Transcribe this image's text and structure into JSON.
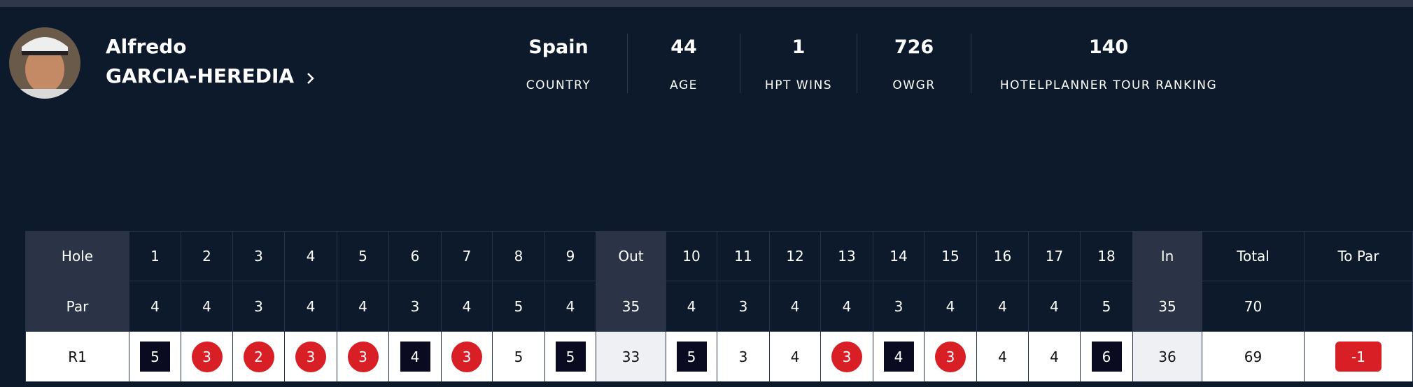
{
  "player": {
    "first_name": "Alfredo",
    "last_name": "GARCIA-HEREDIA"
  },
  "stats": [
    {
      "value": "Spain",
      "label": "COUNTRY"
    },
    {
      "value": 44,
      "label": "AGE"
    },
    {
      "value": 1,
      "label": "HPT WINS"
    },
    {
      "value": 726,
      "label": "OWGR"
    },
    {
      "value": 140,
      "label": "HOTELPLANNER TOUR RANKING"
    }
  ],
  "scorecard": {
    "header": [
      "Hole",
      1,
      2,
      3,
      4,
      5,
      6,
      7,
      8,
      9,
      "Out",
      10,
      11,
      12,
      13,
      14,
      15,
      16,
      17,
      18,
      "In",
      "Total",
      "To Par"
    ],
    "rows": [
      {
        "label": "Par",
        "cells": [
          4,
          4,
          3,
          4,
          4,
          3,
          4,
          5,
          4,
          35,
          4,
          3,
          4,
          4,
          3,
          4,
          4,
          4,
          5,
          35,
          70,
          null
        ]
      },
      {
        "label": "R1",
        "cells": [
          5,
          3,
          2,
          3,
          3,
          4,
          3,
          5,
          5,
          33,
          5,
          3,
          4,
          3,
          4,
          3,
          4,
          4,
          6,
          36,
          69,
          -1
        ]
      }
    ]
  }
}
